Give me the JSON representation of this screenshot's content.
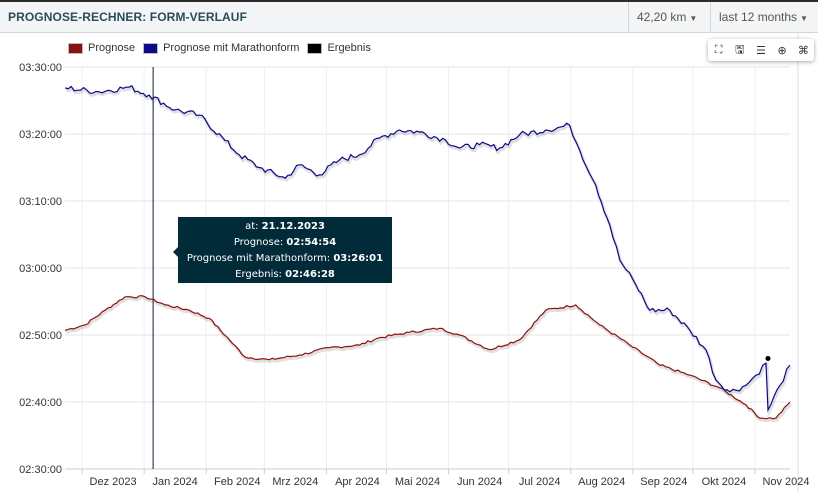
{
  "header": {
    "title": "PROGNOSE-RECHNER: FORM-VERLAUF",
    "distance": "42,20 km",
    "period": "last 12 months"
  },
  "toolbar": {
    "icons": [
      "fullscreen-icon",
      "save-icon",
      "list-icon",
      "crosshair-icon",
      "crop-icon"
    ]
  },
  "tooltip": {
    "at_label": "at:",
    "date": "21.12.2023",
    "prognose_label": "Prognose:",
    "prognose": "02:54:54",
    "marathon_label": "Prognose mit Marathonform:",
    "marathon": "03:26:01",
    "ergebnis_label": "Ergebnis:",
    "ergebnis": "02:46:28"
  },
  "chart_data": {
    "type": "line",
    "title": "Prognose-Rechner: Form-Verlauf",
    "x_unit": "days since 2023-11-07",
    "y_unit": "minutes (race time)",
    "ylim": [
      150,
      210
    ],
    "y_ticks": [
      {
        "v": 150,
        "label": "02:30:00"
      },
      {
        "v": 160,
        "label": "02:40:00"
      },
      {
        "v": 170,
        "label": "02:50:00"
      },
      {
        "v": 180,
        "label": "03:00:00"
      },
      {
        "v": 190,
        "label": "03:10:00"
      },
      {
        "v": 200,
        "label": "03:20:00"
      },
      {
        "v": 210,
        "label": "03:30:00"
      }
    ],
    "xlim": [
      0,
      362
    ],
    "x_ticks": [
      {
        "d": 24,
        "label": "Dez 2023"
      },
      {
        "d": 55,
        "label": "Jan 2024"
      },
      {
        "d": 86,
        "label": "Feb 2024"
      },
      {
        "d": 115,
        "label": "Mrz 2024"
      },
      {
        "d": 146,
        "label": "Apr 2024"
      },
      {
        "d": 176,
        "label": "Mai 2024"
      },
      {
        "d": 207,
        "label": "Jun 2024"
      },
      {
        "d": 237,
        "label": "Jul 2024"
      },
      {
        "d": 268,
        "label": "Aug 2024"
      },
      {
        "d": 299,
        "label": "Sep 2024"
      },
      {
        "d": 329,
        "label": "Okt 2024"
      },
      {
        "d": 360,
        "label": "Nov 2024"
      }
    ],
    "crosshair_day": 44,
    "legend_position": "top-left",
    "series": [
      {
        "name": "Prognose",
        "color": "#8b1010",
        "points": [
          [
            0,
            170.7
          ],
          [
            10,
            171.5
          ],
          [
            20,
            173.7
          ],
          [
            30,
            175.7
          ],
          [
            40,
            175.7
          ],
          [
            50,
            174.5
          ],
          [
            62,
            173.7
          ],
          [
            72,
            172.5
          ],
          [
            82,
            169.3
          ],
          [
            90,
            166.7
          ],
          [
            102,
            166.3
          ],
          [
            117,
            167
          ],
          [
            132,
            168.1
          ],
          [
            147,
            168.5
          ],
          [
            157,
            169.6
          ],
          [
            172,
            170.4
          ],
          [
            187,
            171
          ],
          [
            197,
            170
          ],
          [
            212,
            167.8
          ],
          [
            227,
            169.3
          ],
          [
            240,
            173.7
          ],
          [
            255,
            174.5
          ],
          [
            267,
            171.5
          ],
          [
            282,
            168.5
          ],
          [
            297,
            165.5
          ],
          [
            312,
            164
          ],
          [
            327,
            162.1
          ],
          [
            340,
            159.6
          ],
          [
            347,
            157.6
          ],
          [
            355,
            157.6
          ],
          [
            362,
            160
          ]
        ]
      },
      {
        "name": "Prognose mit Marathonform",
        "color": "#0a0a8a",
        "points": [
          [
            0,
            206.9
          ],
          [
            17,
            206.3
          ],
          [
            32,
            207
          ],
          [
            42,
            205.8
          ],
          [
            55,
            203.6
          ],
          [
            67,
            202.8
          ],
          [
            80,
            199
          ],
          [
            87,
            196.9
          ],
          [
            97,
            195
          ],
          [
            110,
            193.4
          ],
          [
            117,
            195.4
          ],
          [
            127,
            193.9
          ],
          [
            137,
            196.1
          ],
          [
            147,
            196.9
          ],
          [
            157,
            199.4
          ],
          [
            167,
            200.6
          ],
          [
            177,
            200.3
          ],
          [
            190,
            199.1
          ],
          [
            197,
            197.9
          ],
          [
            207,
            198.4
          ],
          [
            217,
            197.9
          ],
          [
            227,
            199.9
          ],
          [
            240,
            200.6
          ],
          [
            252,
            201.3
          ],
          [
            257,
            197.6
          ],
          [
            265,
            192.4
          ],
          [
            272,
            186.4
          ],
          [
            277,
            181.2
          ],
          [
            285,
            177.5
          ],
          [
            292,
            173.7
          ],
          [
            302,
            173.7
          ],
          [
            312,
            170.7
          ],
          [
            320,
            167.8
          ],
          [
            325,
            163.3
          ],
          [
            332,
            161.5
          ],
          [
            340,
            162.5
          ],
          [
            345,
            164
          ],
          [
            350,
            165.8
          ],
          [
            351,
            158.8
          ],
          [
            357,
            162.5
          ],
          [
            362,
            165.5
          ]
        ]
      },
      {
        "name": "Ergebnis",
        "color": "#000000",
        "points": [
          [
            351,
            166.5
          ]
        ]
      }
    ]
  }
}
